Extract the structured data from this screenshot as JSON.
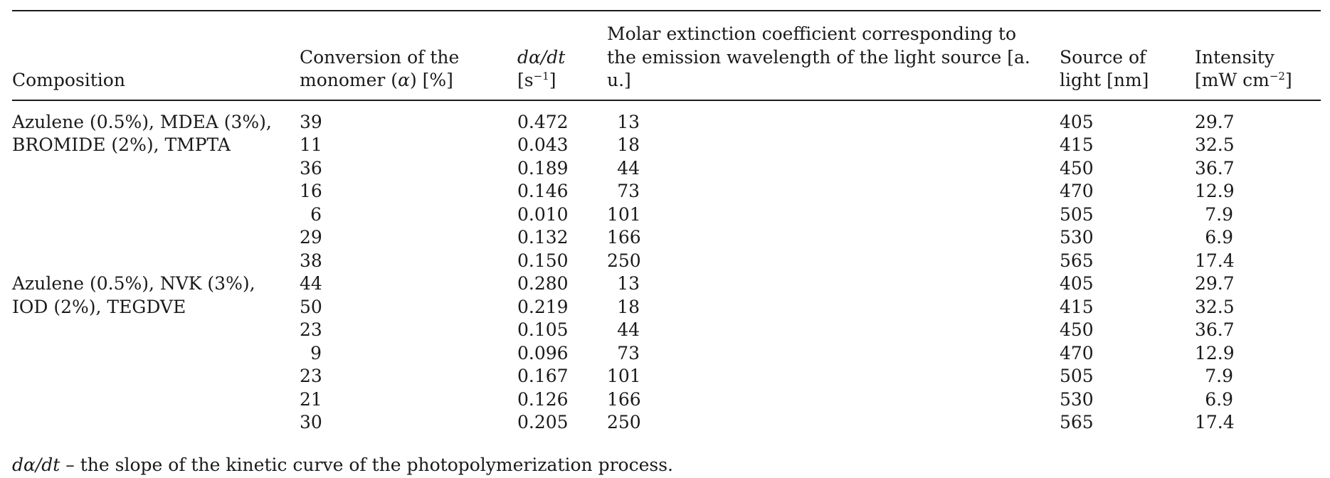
{
  "headers": {
    "composition": "Composition",
    "conversion_line1": "Conversion of the",
    "conversion_line2_pre": "monomer (",
    "conversion_symbol": "α",
    "conversion_line2_post": ") [%]",
    "rate_line1_d": "dα/dt",
    "rate_line2_pre": "[s",
    "rate_line2_sup": "−1",
    "rate_line2_post": "]",
    "molar_line1": "Molar extinction coefficient corresponding to",
    "molar_line2": "the emission wavelength of the light source [a.",
    "molar_line3": "u.]",
    "source_line1": "Source of",
    "source_line2": "light [nm]",
    "intensity_line1": "Intensity",
    "intensity_line2_pre": "[mW cm",
    "intensity_line2_sup": "−2",
    "intensity_line2_post": "]"
  },
  "groups": [
    {
      "composition_line1": "Azulene (0.5%), MDEA (3%),",
      "composition_line2": "BROMIDE (2%), TMPTA",
      "rows": [
        {
          "conversion": "39",
          "rate": "0.472",
          "molar": "13",
          "source": "405",
          "intensity": "29.7"
        },
        {
          "conversion": "11",
          "rate": "0.043",
          "molar": "18",
          "source": "415",
          "intensity": "32.5"
        },
        {
          "conversion": "36",
          "rate": "0.189",
          "molar": "44",
          "source": "450",
          "intensity": "36.7"
        },
        {
          "conversion": "16",
          "rate": "0.146",
          "molar": "73",
          "source": "470",
          "intensity": "12.9"
        },
        {
          "conversion": "6",
          "rate": "0.010",
          "molar": "101",
          "source": "505",
          "intensity": "7.9"
        },
        {
          "conversion": "29",
          "rate": "0.132",
          "molar": "166",
          "source": "530",
          "intensity": "6.9"
        },
        {
          "conversion": "38",
          "rate": "0.150",
          "molar": "250",
          "source": "565",
          "intensity": "17.4"
        }
      ]
    },
    {
      "composition_line1": "Azulene (0.5%), NVK (3%),",
      "composition_line2": "IOD (2%), TEGDVE",
      "rows": [
        {
          "conversion": "44",
          "rate": "0.280",
          "molar": "13",
          "source": "405",
          "intensity": "29.7"
        },
        {
          "conversion": "50",
          "rate": "0.219",
          "molar": "18",
          "source": "415",
          "intensity": "32.5"
        },
        {
          "conversion": "23",
          "rate": "0.105",
          "molar": "44",
          "source": "450",
          "intensity": "36.7"
        },
        {
          "conversion": "9",
          "rate": "0.096",
          "molar": "73",
          "source": "470",
          "intensity": "12.9"
        },
        {
          "conversion": "23",
          "rate": "0.167",
          "molar": "101",
          "source": "505",
          "intensity": "7.9"
        },
        {
          "conversion": "21",
          "rate": "0.126",
          "molar": "166",
          "source": "530",
          "intensity": "6.9"
        },
        {
          "conversion": "30",
          "rate": "0.205",
          "molar": "250",
          "source": "565",
          "intensity": "17.4"
        }
      ]
    }
  ],
  "footnote": {
    "symbol": "dα/dt",
    "text": " – the slope of the kinetic curve of the photopolymerization process."
  }
}
